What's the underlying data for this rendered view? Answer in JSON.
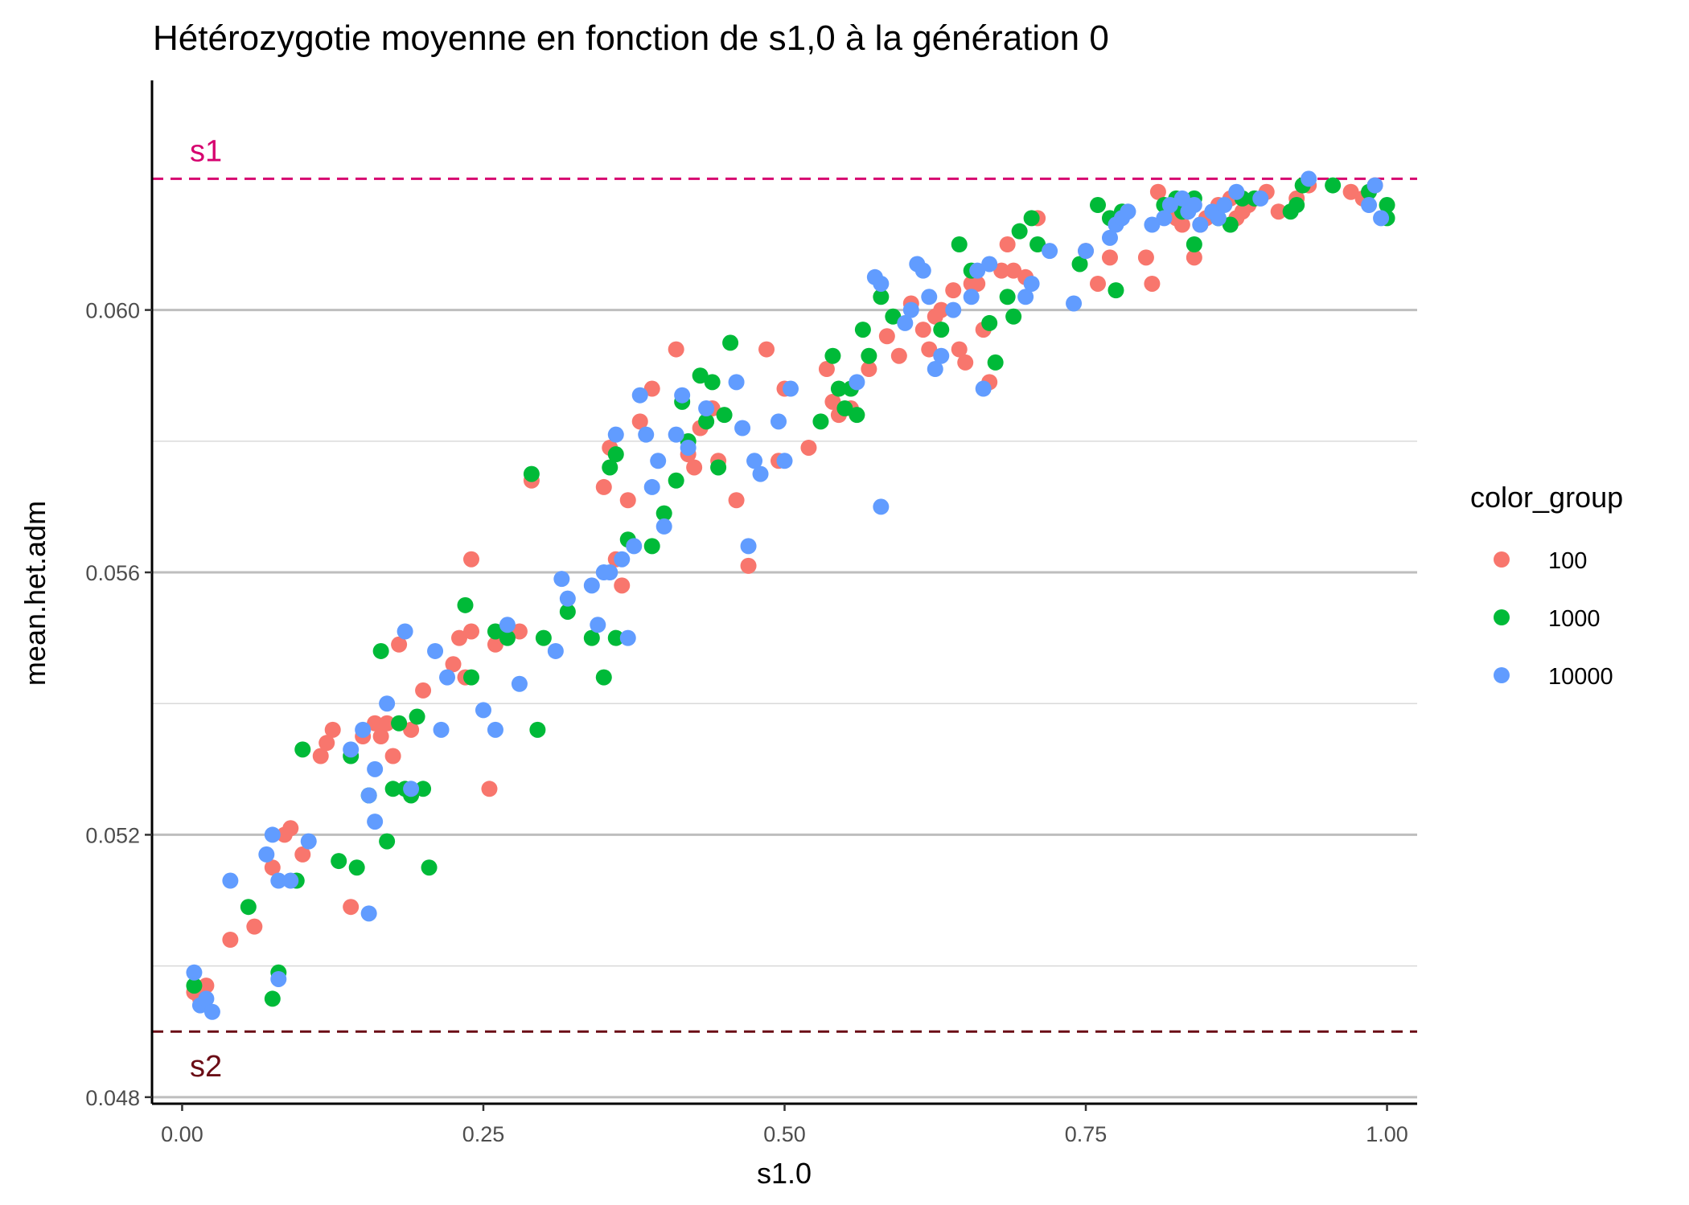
{
  "chart_data": {
    "type": "scatter",
    "title": "Hétérozygotie moyenne en fonction de s1,0 à la génération 0",
    "xlabel": "s1.0",
    "ylabel": "mean.het.adm",
    "xlim": [
      -0.025,
      1.025
    ],
    "ylim": [
      0.0479,
      0.0635
    ],
    "x_ticks": [
      {
        "value": 0.0,
        "label": "0.00"
      },
      {
        "value": 0.25,
        "label": "0.25"
      },
      {
        "value": 0.5,
        "label": "0.50"
      },
      {
        "value": 0.75,
        "label": "0.75"
      },
      {
        "value": 1.0,
        "label": "1.00"
      }
    ],
    "y_ticks": [
      {
        "value": 0.048,
        "label": "0.048"
      },
      {
        "value": 0.052,
        "label": "0.052"
      },
      {
        "value": 0.056,
        "label": "0.056"
      },
      {
        "value": 0.06,
        "label": "0.060"
      }
    ],
    "y_minor_gridlines": [
      0.05,
      0.054,
      0.058
    ],
    "grid": "horizontal",
    "legend": {
      "title": "color_group",
      "position": "right"
    },
    "reference_lines": [
      {
        "label": "s1",
        "value": 0.062,
        "color": "#d6006f",
        "style": "dashed"
      },
      {
        "label": "s2",
        "value": 0.049,
        "color": "#6b0d16",
        "style": "dashed"
      }
    ],
    "series": [
      {
        "name": "100",
        "color": "#f8766d",
        "points": [
          [
            0.01,
            0.0496
          ],
          [
            0.015,
            0.0495
          ],
          [
            0.02,
            0.0497
          ],
          [
            0.04,
            0.0504
          ],
          [
            0.06,
            0.0506
          ],
          [
            0.075,
            0.0515
          ],
          [
            0.085,
            0.052
          ],
          [
            0.09,
            0.0521
          ],
          [
            0.1,
            0.0517
          ],
          [
            0.115,
            0.0532
          ],
          [
            0.12,
            0.0534
          ],
          [
            0.125,
            0.0536
          ],
          [
            0.14,
            0.0509
          ],
          [
            0.15,
            0.0535
          ],
          [
            0.16,
            0.0537
          ],
          [
            0.165,
            0.0535
          ],
          [
            0.17,
            0.0537
          ],
          [
            0.175,
            0.0532
          ],
          [
            0.18,
            0.0549
          ],
          [
            0.19,
            0.0536
          ],
          [
            0.2,
            0.0542
          ],
          [
            0.225,
            0.0546
          ],
          [
            0.23,
            0.055
          ],
          [
            0.235,
            0.0544
          ],
          [
            0.24,
            0.0551
          ],
          [
            0.24,
            0.0562
          ],
          [
            0.255,
            0.0527
          ],
          [
            0.26,
            0.0549
          ],
          [
            0.28,
            0.0551
          ],
          [
            0.29,
            0.0574
          ],
          [
            0.35,
            0.0573
          ],
          [
            0.355,
            0.0579
          ],
          [
            0.36,
            0.0562
          ],
          [
            0.365,
            0.0558
          ],
          [
            0.37,
            0.0571
          ],
          [
            0.38,
            0.0583
          ],
          [
            0.39,
            0.0588
          ],
          [
            0.41,
            0.0594
          ],
          [
            0.42,
            0.0578
          ],
          [
            0.425,
            0.0576
          ],
          [
            0.43,
            0.0582
          ],
          [
            0.44,
            0.0585
          ],
          [
            0.445,
            0.0577
          ],
          [
            0.46,
            0.0571
          ],
          [
            0.47,
            0.0561
          ],
          [
            0.485,
            0.0594
          ],
          [
            0.495,
            0.0577
          ],
          [
            0.5,
            0.0588
          ],
          [
            0.52,
            0.0579
          ],
          [
            0.535,
            0.0591
          ],
          [
            0.54,
            0.0586
          ],
          [
            0.545,
            0.0584
          ],
          [
            0.555,
            0.0585
          ],
          [
            0.57,
            0.0591
          ],
          [
            0.585,
            0.0596
          ],
          [
            0.595,
            0.0593
          ],
          [
            0.605,
            0.0601
          ],
          [
            0.615,
            0.0597
          ],
          [
            0.62,
            0.0594
          ],
          [
            0.625,
            0.0599
          ],
          [
            0.63,
            0.06
          ],
          [
            0.64,
            0.0603
          ],
          [
            0.645,
            0.0594
          ],
          [
            0.65,
            0.0592
          ],
          [
            0.655,
            0.0604
          ],
          [
            0.66,
            0.0604
          ],
          [
            0.665,
            0.0597
          ],
          [
            0.67,
            0.0589
          ],
          [
            0.68,
            0.0606
          ],
          [
            0.685,
            0.061
          ],
          [
            0.69,
            0.0606
          ],
          [
            0.7,
            0.0605
          ],
          [
            0.71,
            0.0614
          ],
          [
            0.75,
            0.0609
          ],
          [
            0.76,
            0.0604
          ],
          [
            0.77,
            0.0608
          ],
          [
            0.8,
            0.0608
          ],
          [
            0.805,
            0.0604
          ],
          [
            0.81,
            0.0618
          ],
          [
            0.825,
            0.0614
          ],
          [
            0.83,
            0.0613
          ],
          [
            0.84,
            0.0608
          ],
          [
            0.845,
            0.0613
          ],
          [
            0.85,
            0.0614
          ],
          [
            0.86,
            0.0616
          ],
          [
            0.87,
            0.0617
          ],
          [
            0.875,
            0.0614
          ],
          [
            0.88,
            0.0615
          ],
          [
            0.885,
            0.0616
          ],
          [
            0.89,
            0.0617
          ],
          [
            0.9,
            0.0618
          ],
          [
            0.91,
            0.0615
          ],
          [
            0.925,
            0.0617
          ],
          [
            0.935,
            0.0619
          ],
          [
            0.97,
            0.0618
          ],
          [
            0.98,
            0.0617
          ],
          [
            0.99,
            0.0619
          ]
        ]
      },
      {
        "name": "1000",
        "color": "#00ba38",
        "points": [
          [
            0.01,
            0.0497
          ],
          [
            0.055,
            0.0509
          ],
          [
            0.075,
            0.0495
          ],
          [
            0.08,
            0.0499
          ],
          [
            0.095,
            0.0513
          ],
          [
            0.1,
            0.0533
          ],
          [
            0.13,
            0.0516
          ],
          [
            0.14,
            0.0532
          ],
          [
            0.145,
            0.0515
          ],
          [
            0.155,
            0.0526
          ],
          [
            0.165,
            0.0548
          ],
          [
            0.17,
            0.0519
          ],
          [
            0.175,
            0.0527
          ],
          [
            0.18,
            0.0537
          ],
          [
            0.185,
            0.0527
          ],
          [
            0.19,
            0.0526
          ],
          [
            0.195,
            0.0538
          ],
          [
            0.2,
            0.0527
          ],
          [
            0.205,
            0.0515
          ],
          [
            0.235,
            0.0555
          ],
          [
            0.24,
            0.0544
          ],
          [
            0.26,
            0.0551
          ],
          [
            0.27,
            0.055
          ],
          [
            0.29,
            0.0575
          ],
          [
            0.295,
            0.0536
          ],
          [
            0.3,
            0.055
          ],
          [
            0.32,
            0.0554
          ],
          [
            0.34,
            0.055
          ],
          [
            0.35,
            0.0544
          ],
          [
            0.355,
            0.0576
          ],
          [
            0.36,
            0.0578
          ],
          [
            0.36,
            0.055
          ],
          [
            0.37,
            0.0565
          ],
          [
            0.39,
            0.0564
          ],
          [
            0.4,
            0.0569
          ],
          [
            0.41,
            0.0574
          ],
          [
            0.415,
            0.0586
          ],
          [
            0.42,
            0.058
          ],
          [
            0.43,
            0.059
          ],
          [
            0.435,
            0.0583
          ],
          [
            0.44,
            0.0589
          ],
          [
            0.445,
            0.0576
          ],
          [
            0.45,
            0.0584
          ],
          [
            0.455,
            0.0595
          ],
          [
            0.53,
            0.0583
          ],
          [
            0.54,
            0.0593
          ],
          [
            0.545,
            0.0588
          ],
          [
            0.55,
            0.0585
          ],
          [
            0.555,
            0.0588
          ],
          [
            0.56,
            0.0584
          ],
          [
            0.565,
            0.0597
          ],
          [
            0.57,
            0.0593
          ],
          [
            0.58,
            0.0602
          ],
          [
            0.59,
            0.0599
          ],
          [
            0.63,
            0.0597
          ],
          [
            0.645,
            0.061
          ],
          [
            0.655,
            0.0606
          ],
          [
            0.67,
            0.0598
          ],
          [
            0.675,
            0.0592
          ],
          [
            0.685,
            0.0602
          ],
          [
            0.69,
            0.0599
          ],
          [
            0.695,
            0.0612
          ],
          [
            0.705,
            0.0614
          ],
          [
            0.71,
            0.061
          ],
          [
            0.745,
            0.0607
          ],
          [
            0.76,
            0.0616
          ],
          [
            0.77,
            0.0614
          ],
          [
            0.775,
            0.0603
          ],
          [
            0.78,
            0.0615
          ],
          [
            0.815,
            0.0616
          ],
          [
            0.825,
            0.0617
          ],
          [
            0.83,
            0.0615
          ],
          [
            0.84,
            0.0617
          ],
          [
            0.84,
            0.061
          ],
          [
            0.86,
            0.0614
          ],
          [
            0.87,
            0.0613
          ],
          [
            0.88,
            0.0617
          ],
          [
            0.89,
            0.0617
          ],
          [
            0.92,
            0.0615
          ],
          [
            0.925,
            0.0616
          ],
          [
            0.93,
            0.0619
          ],
          [
            0.955,
            0.0619
          ],
          [
            0.985,
            0.0618
          ],
          [
            1.0,
            0.0616
          ],
          [
            1.0,
            0.0614
          ]
        ]
      },
      {
        "name": "10000",
        "color": "#619cff",
        "points": [
          [
            0.01,
            0.0499
          ],
          [
            0.015,
            0.0494
          ],
          [
            0.02,
            0.0495
          ],
          [
            0.025,
            0.0493
          ],
          [
            0.04,
            0.0513
          ],
          [
            0.07,
            0.0517
          ],
          [
            0.075,
            0.052
          ],
          [
            0.08,
            0.0513
          ],
          [
            0.08,
            0.0498
          ],
          [
            0.09,
            0.0513
          ],
          [
            0.105,
            0.0519
          ],
          [
            0.14,
            0.0533
          ],
          [
            0.15,
            0.0536
          ],
          [
            0.155,
            0.0526
          ],
          [
            0.155,
            0.0508
          ],
          [
            0.16,
            0.053
          ],
          [
            0.16,
            0.0522
          ],
          [
            0.17,
            0.054
          ],
          [
            0.185,
            0.0551
          ],
          [
            0.19,
            0.0527
          ],
          [
            0.21,
            0.0548
          ],
          [
            0.215,
            0.0536
          ],
          [
            0.22,
            0.0544
          ],
          [
            0.25,
            0.0539
          ],
          [
            0.26,
            0.0536
          ],
          [
            0.27,
            0.0552
          ],
          [
            0.28,
            0.0543
          ],
          [
            0.31,
            0.0548
          ],
          [
            0.315,
            0.0559
          ],
          [
            0.32,
            0.0556
          ],
          [
            0.34,
            0.0558
          ],
          [
            0.345,
            0.0552
          ],
          [
            0.35,
            0.056
          ],
          [
            0.355,
            0.056
          ],
          [
            0.36,
            0.0581
          ],
          [
            0.365,
            0.0562
          ],
          [
            0.37,
            0.055
          ],
          [
            0.375,
            0.0564
          ],
          [
            0.38,
            0.0587
          ],
          [
            0.385,
            0.0581
          ],
          [
            0.39,
            0.0573
          ],
          [
            0.395,
            0.0577
          ],
          [
            0.4,
            0.0567
          ],
          [
            0.41,
            0.0581
          ],
          [
            0.415,
            0.0587
          ],
          [
            0.42,
            0.0579
          ],
          [
            0.435,
            0.0585
          ],
          [
            0.46,
            0.0589
          ],
          [
            0.465,
            0.0582
          ],
          [
            0.47,
            0.0564
          ],
          [
            0.475,
            0.0577
          ],
          [
            0.48,
            0.0575
          ],
          [
            0.495,
            0.0583
          ],
          [
            0.5,
            0.0577
          ],
          [
            0.505,
            0.0588
          ],
          [
            0.56,
            0.0589
          ],
          [
            0.575,
            0.0605
          ],
          [
            0.58,
            0.0604
          ],
          [
            0.58,
            0.057
          ],
          [
            0.6,
            0.0598
          ],
          [
            0.605,
            0.06
          ],
          [
            0.61,
            0.0607
          ],
          [
            0.615,
            0.0606
          ],
          [
            0.62,
            0.0602
          ],
          [
            0.625,
            0.0591
          ],
          [
            0.63,
            0.0593
          ],
          [
            0.64,
            0.06
          ],
          [
            0.655,
            0.0602
          ],
          [
            0.66,
            0.0606
          ],
          [
            0.665,
            0.0588
          ],
          [
            0.67,
            0.0607
          ],
          [
            0.7,
            0.0602
          ],
          [
            0.705,
            0.0604
          ],
          [
            0.72,
            0.0609
          ],
          [
            0.74,
            0.0601
          ],
          [
            0.75,
            0.0609
          ],
          [
            0.77,
            0.0611
          ],
          [
            0.775,
            0.0613
          ],
          [
            0.78,
            0.0614
          ],
          [
            0.785,
            0.0615
          ],
          [
            0.805,
            0.0613
          ],
          [
            0.815,
            0.0614
          ],
          [
            0.82,
            0.0616
          ],
          [
            0.83,
            0.0617
          ],
          [
            0.835,
            0.0615
          ],
          [
            0.84,
            0.0616
          ],
          [
            0.845,
            0.0613
          ],
          [
            0.855,
            0.0615
          ],
          [
            0.86,
            0.0614
          ],
          [
            0.865,
            0.0616
          ],
          [
            0.875,
            0.0618
          ],
          [
            0.895,
            0.0617
          ],
          [
            0.935,
            0.062
          ],
          [
            0.985,
            0.0616
          ],
          [
            0.99,
            0.0619
          ],
          [
            0.995,
            0.0614
          ]
        ]
      }
    ]
  }
}
